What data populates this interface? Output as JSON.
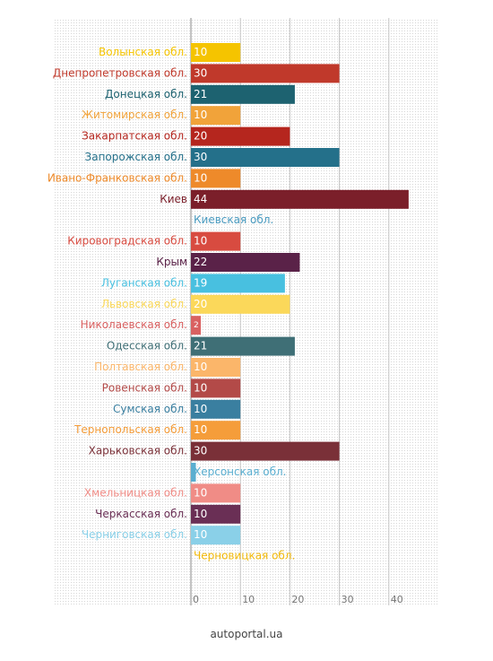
{
  "source_label": "autoportal.ua",
  "chart_data": {
    "type": "bar",
    "orientation": "horizontal",
    "title": "",
    "xlabel": "",
    "ylabel": "",
    "xlim": [
      0,
      45
    ],
    "x_ticks": [
      0,
      10,
      20,
      30,
      40
    ],
    "grid": "dotted background",
    "legend": "none",
    "value_labels": "inside bars at start",
    "categories": [
      "Волынская обл.",
      "Днепропетровская обл.",
      "Донецкая обл.",
      "Житомирская обл.",
      "Закарпатская обл.",
      "Запорожская обл.",
      "Ивано-Франковская обл.",
      "Киев",
      "Киевская обл.",
      "Кировоградская обл.",
      "Крым",
      "Луганская обл.",
      "Львовская обл.",
      "Николаевская обл.",
      "Одесская обл.",
      "Полтавская обл.",
      "Ровенская обл.",
      "Сумская обл.",
      "Тернопольская обл.",
      "Харьковская обл.",
      "Херсонская обл.",
      "Хмельницкая обл.",
      "Черкасская обл.",
      "Черниговская обл.",
      "Черновицкая обл."
    ],
    "values": [
      10,
      30,
      21,
      10,
      20,
      30,
      10,
      44,
      0,
      10,
      22,
      19,
      20,
      2,
      21,
      10,
      10,
      10,
      10,
      30,
      1,
      10,
      10,
      10,
      0
    ],
    "value_text": [
      "10",
      "30",
      "21",
      "10",
      "20",
      "30",
      "10",
      "44",
      "",
      "10",
      "22",
      "19",
      "20",
      "2",
      "21",
      "10",
      "10",
      "10",
      "10",
      "30",
      "",
      "10",
      "10",
      "10",
      ""
    ],
    "colors": [
      "#f5c400",
      "#c0392b",
      "#1d6270",
      "#f1a33a",
      "#b5261e",
      "#24708a",
      "#ee8a2a",
      "#7b1f2a",
      "#4a9bc0",
      "#d84b40",
      "#5a2248",
      "#48c0e0",
      "#fbd85a",
      "#d96161",
      "#3f6f76",
      "#fbb66a",
      "#b34a48",
      "#3a7fa0",
      "#f59d3a",
      "#7a3038",
      "#5aaed0",
      "#f08c86",
      "#6a2f55",
      "#8ad0e8",
      "#f2b90a"
    ]
  }
}
